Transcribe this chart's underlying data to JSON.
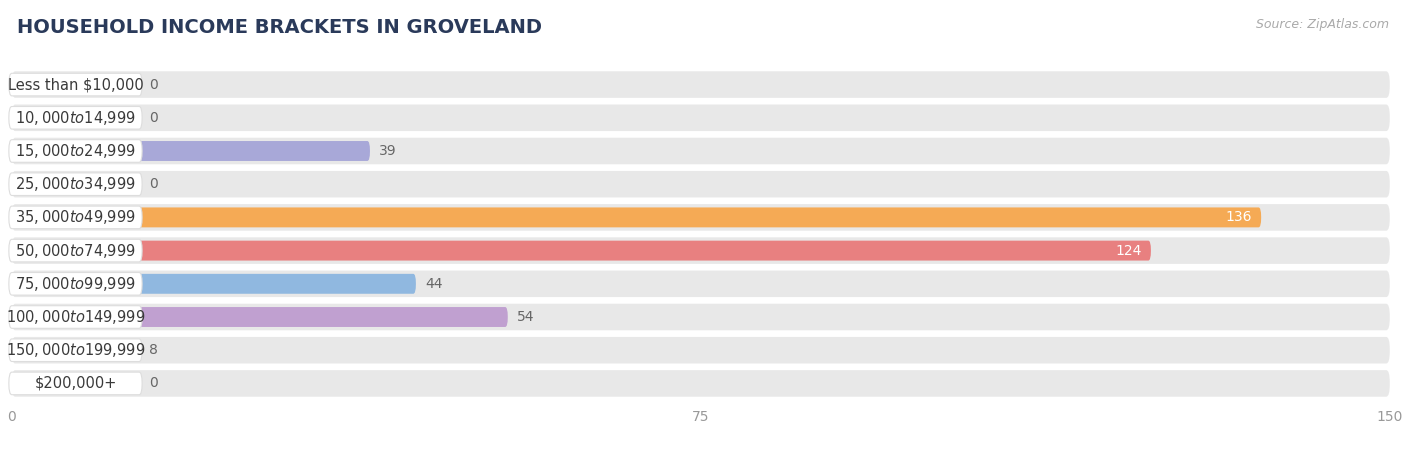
{
  "title": "HOUSEHOLD INCOME BRACKETS IN GROVELAND",
  "source": "Source: ZipAtlas.com",
  "categories": [
    "Less than $10,000",
    "$10,000 to $14,999",
    "$15,000 to $24,999",
    "$25,000 to $34,999",
    "$35,000 to $49,999",
    "$50,000 to $74,999",
    "$75,000 to $99,999",
    "$100,000 to $149,999",
    "$150,000 to $199,999",
    "$200,000+"
  ],
  "values": [
    0,
    0,
    39,
    0,
    136,
    124,
    44,
    54,
    8,
    0
  ],
  "bar_colors": [
    "#c9b0d5",
    "#7ecfca",
    "#a8a8d8",
    "#f4a0b5",
    "#f5aa55",
    "#e88080",
    "#90b8e0",
    "#c0a0d0",
    "#70c8c0",
    "#b8b0e0"
  ],
  "xlim": [
    0,
    150
  ],
  "xticks": [
    0,
    75,
    150
  ],
  "background_color": "#ffffff",
  "bar_bg_color": "#e8e8e8",
  "title_fontsize": 14,
  "source_fontsize": 9,
  "label_fontsize": 10.5,
  "value_fontsize": 10,
  "tick_fontsize": 10,
  "title_color": "#2a3a5a",
  "label_text_color": "#3a3a3a",
  "value_color_inside": "#ffffff",
  "value_color_outside": "#666666",
  "source_color": "#aaaaaa"
}
